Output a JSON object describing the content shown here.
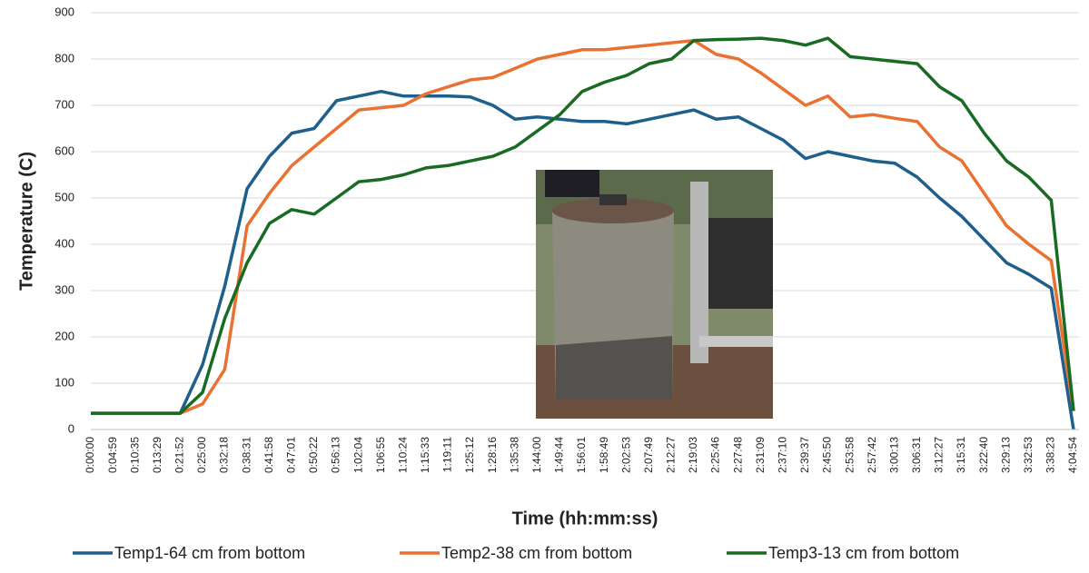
{
  "chart_data": {
    "type": "line",
    "y_label": "Temperature (C)",
    "x_label": "Time (hh:mm:ss)",
    "categories": [
      "0:00:00",
      "0:04:59",
      "0:10:35",
      "0:13:29",
      "0:21:52",
      "0:25:00",
      "0:32:18",
      "0:38:31",
      "0:41:58",
      "0:47:01",
      "0:50:22",
      "0:56:13",
      "1:02:04",
      "1:06:55",
      "1:10:24",
      "1:15:33",
      "1:19:11",
      "1:25:12",
      "1:28:16",
      "1:35:38",
      "1:44:00",
      "1:49:44",
      "1:56:01",
      "1:58:49",
      "2:02:53",
      "2:07:49",
      "2:12:27",
      "2:19:03",
      "2:25:46",
      "2:27:48",
      "2:31:09",
      "2:37:10",
      "2:39:37",
      "2:45:50",
      "2:53:58",
      "2:57:42",
      "3:00:13",
      "3:06:31",
      "3:12:27",
      "3:15:31",
      "3:22:40",
      "3:29:13",
      "3:32:53",
      "3:38:23",
      "4:04:54"
    ],
    "series": [
      {
        "name": "Temp1-64 cm from bottom",
        "color": "#1f5f8b",
        "values": [
          35,
          35,
          35,
          35,
          35,
          140,
          310,
          520,
          590,
          640,
          650,
          710,
          720,
          730,
          720,
          720,
          720,
          718,
          700,
          670,
          675,
          670,
          665,
          665,
          660,
          670,
          680,
          690,
          670,
          675,
          650,
          625,
          585,
          600,
          590,
          580,
          575,
          545,
          500,
          460,
          410,
          360,
          335,
          305,
          0
        ]
      },
      {
        "name": "Temp2-38 cm from bottom",
        "color": "#e97132",
        "values": [
          35,
          35,
          35,
          35,
          35,
          55,
          130,
          440,
          510,
          570,
          610,
          650,
          690,
          695,
          700,
          725,
          740,
          755,
          760,
          780,
          800,
          810,
          820,
          820,
          825,
          830,
          835,
          840,
          810,
          800,
          770,
          735,
          700,
          720,
          675,
          680,
          672,
          665,
          610,
          580,
          510,
          440,
          400,
          365,
          40
        ]
      },
      {
        "name": "Temp3-13 cm from bottom",
        "color": "#196b24",
        "values": [
          35,
          35,
          35,
          35,
          35,
          80,
          240,
          360,
          445,
          475,
          465,
          500,
          535,
          540,
          550,
          565,
          570,
          580,
          590,
          610,
          645,
          680,
          730,
          750,
          765,
          790,
          800,
          840,
          842,
          843,
          845,
          840,
          830,
          845,
          805,
          800,
          795,
          790,
          740,
          710,
          640,
          580,
          545,
          495,
          40
        ]
      }
    ],
    "ylim": [
      0,
      900
    ],
    "yticks": [
      0,
      100,
      200,
      300,
      400,
      500,
      600,
      700,
      800,
      900
    ],
    "grid": true
  }
}
